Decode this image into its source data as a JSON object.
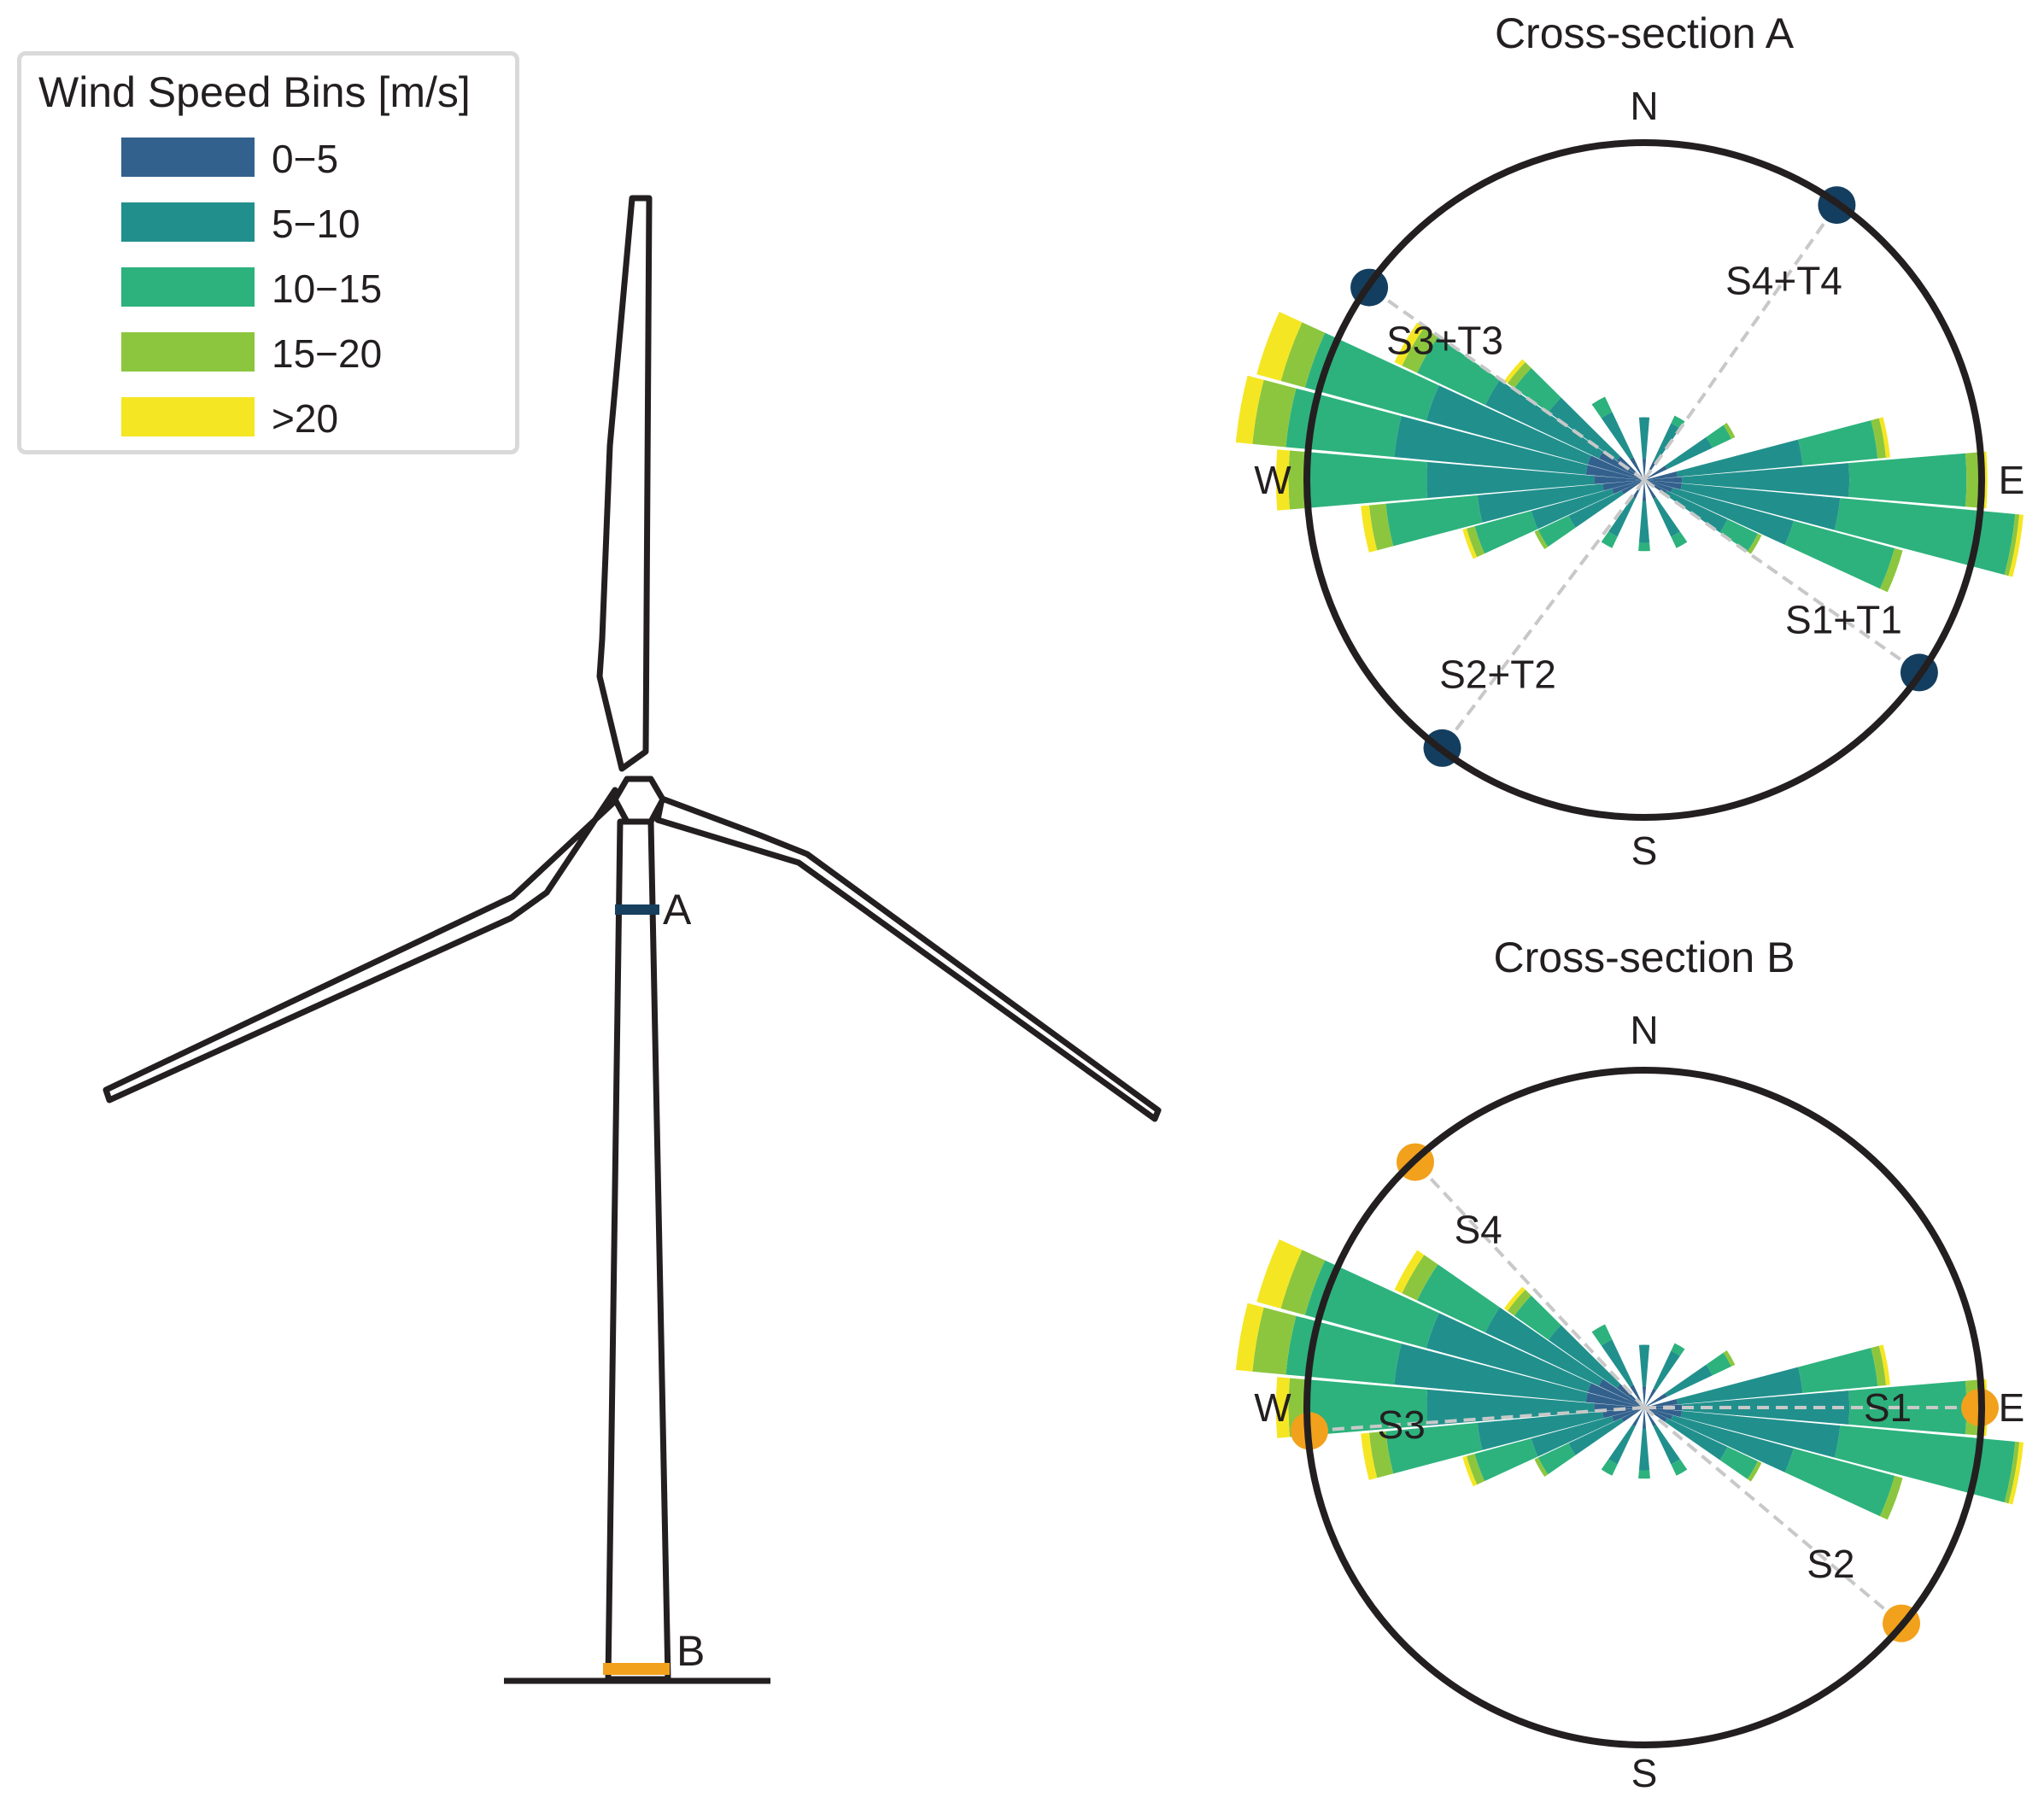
{
  "legend": {
    "title": "Wind Speed Bins [m/s]",
    "bins": [
      {
        "label": "0−5",
        "color": "#33618d"
      },
      {
        "label": "5−10",
        "color": "#21908d"
      },
      {
        "label": "10−15",
        "color": "#2db27d"
      },
      {
        "label": "15−20",
        "color": "#8cc63f"
      },
      {
        "label": ">20",
        "color": "#f5e623"
      }
    ]
  },
  "turbine": {
    "marker_a": {
      "label": "A",
      "color": "#16405e"
    },
    "marker_b": {
      "label": "B",
      "color": "#f2a11c"
    }
  },
  "roses": [
    {
      "title": "Cross-section A",
      "title_color": "#16405e",
      "compass": [
        "N",
        "E",
        "S",
        "W"
      ],
      "sensor_color": "#143e5f",
      "sensors": [
        {
          "label": "S1+T1",
          "bearing_deg": 125
        },
        {
          "label": "S2+T2",
          "bearing_deg": 217
        },
        {
          "label": "S3+T3",
          "bearing_deg": 305
        },
        {
          "label": "S4+T4",
          "bearing_deg": 35
        }
      ]
    },
    {
      "title": "Cross-section B",
      "title_color": "#f2a11c",
      "compass": [
        "N",
        "E",
        "S",
        "W"
      ],
      "sensor_color": "#f2a11c",
      "sensors": [
        {
          "label": "S1",
          "bearing_deg": 90
        },
        {
          "label": "S2",
          "bearing_deg": 130
        },
        {
          "label": "S3",
          "bearing_deg": 266
        },
        {
          "label": "S4",
          "bearing_deg": 317
        }
      ]
    }
  ],
  "wind_rose_data": {
    "direction_sector_deg": 10,
    "bin_colors": [
      "#33618d",
      "#21908d",
      "#2db27d",
      "#8cc63f",
      "#f5e623"
    ],
    "sectors": [
      {
        "dir": 0,
        "c": [
          0.05,
          0.1,
          0.0,
          0.0,
          0.0
        ]
      },
      {
        "dir": 30,
        "c": [
          0.05,
          0.1,
          0.02,
          0.0,
          0.0
        ]
      },
      {
        "dir": 60,
        "c": [
          0.06,
          0.12,
          0.05,
          0.01,
          0.0
        ]
      },
      {
        "dir": 80,
        "c": [
          0.08,
          0.3,
          0.18,
          0.02,
          0.01
        ]
      },
      {
        "dir": 90,
        "c": [
          0.09,
          0.4,
          0.28,
          0.04,
          0.01
        ]
      },
      {
        "dir": 100,
        "c": [
          0.09,
          0.38,
          0.42,
          0.01,
          0.01
        ]
      },
      {
        "dir": 110,
        "c": [
          0.07,
          0.3,
          0.25,
          0.02,
          0.0
        ]
      },
      {
        "dir": 120,
        "c": [
          0.06,
          0.16,
          0.08,
          0.01,
          0.0
        ]
      },
      {
        "dir": 150,
        "c": [
          0.05,
          0.1,
          0.03,
          0.0,
          0.0
        ]
      },
      {
        "dir": 180,
        "c": [
          0.05,
          0.1,
          0.02,
          0.0,
          0.0
        ]
      },
      {
        "dir": 210,
        "c": [
          0.05,
          0.1,
          0.03,
          0.0,
          0.0
        ]
      },
      {
        "dir": 240,
        "c": [
          0.06,
          0.14,
          0.08,
          0.01,
          0.0
        ]
      },
      {
        "dir": 250,
        "c": [
          0.08,
          0.2,
          0.14,
          0.02,
          0.01
        ]
      },
      {
        "dir": 260,
        "c": [
          0.1,
          0.3,
          0.22,
          0.04,
          0.02
        ]
      },
      {
        "dir": 270,
        "c": [
          0.12,
          0.4,
          0.28,
          0.05,
          0.03
        ]
      },
      {
        "dir": 280,
        "c": [
          0.14,
          0.46,
          0.26,
          0.08,
          0.04
        ]
      },
      {
        "dir": 290,
        "c": [
          0.14,
          0.4,
          0.3,
          0.06,
          0.06
        ]
      },
      {
        "dir": 300,
        "c": [
          0.12,
          0.3,
          0.18,
          0.04,
          0.02
        ]
      },
      {
        "dir": 310,
        "c": [
          0.08,
          0.2,
          0.1,
          0.02,
          0.01
        ]
      },
      {
        "dir": 330,
        "c": [
          0.06,
          0.12,
          0.04,
          0.0,
          0.0
        ]
      }
    ]
  }
}
